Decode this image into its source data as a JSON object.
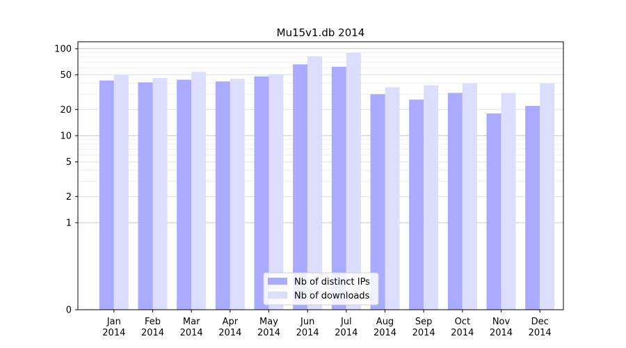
{
  "chart_data": {
    "type": "bar",
    "title": "Mu15v1.db 2014",
    "xlabel": "",
    "ylabel": "",
    "y_scale": "symlog",
    "ylim": [
      0,
      120
    ],
    "y_ticks": [
      0,
      1,
      2,
      5,
      10,
      20,
      50,
      100
    ],
    "y_tick_labels": [
      "0",
      "1",
      "2",
      "5",
      "10",
      "20",
      "50",
      "100"
    ],
    "grid": "horizontal",
    "legend_position": "lower-center",
    "categories": [
      "Jan 2014",
      "Feb 2014",
      "Mar 2014",
      "Apr 2014",
      "May 2014",
      "Jun 2014",
      "Jul 2014",
      "Aug 2014",
      "Sep 2014",
      "Oct 2014",
      "Nov 2014",
      "Dec 2014"
    ],
    "category_lines": [
      [
        "Jan",
        "2014"
      ],
      [
        "Feb",
        "2014"
      ],
      [
        "Mar",
        "2014"
      ],
      [
        "Apr",
        "2014"
      ],
      [
        "May",
        "2014"
      ],
      [
        "Jun",
        "2014"
      ],
      [
        "Jul",
        "2014"
      ],
      [
        "Aug",
        "2014"
      ],
      [
        "Sep",
        "2014"
      ],
      [
        "Oct",
        "2014"
      ],
      [
        "Nov",
        "2014"
      ],
      [
        "Dec",
        "2014"
      ]
    ],
    "series": [
      {
        "name": "Nb of distinct IPs",
        "color": "#aaaaff",
        "values": [
          43,
          41,
          44,
          42,
          48,
          66,
          62,
          30,
          26,
          31,
          18,
          22
        ]
      },
      {
        "name": "Nb of downloads",
        "color": "#ddddff",
        "values": [
          50,
          46,
          54,
          45,
          51,
          82,
          90,
          36,
          38,
          40,
          31,
          40
        ]
      }
    ]
  }
}
